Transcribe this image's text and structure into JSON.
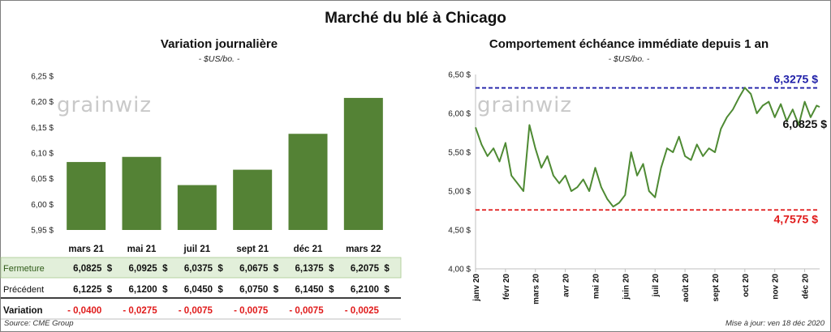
{
  "title": "Marché du blé à Chicago",
  "watermark": "grainwiz",
  "source": "Source: CME Group",
  "updated": "Mise à jour: ven 18 déc 2020",
  "colors": {
    "bar": "#548235",
    "line": "#4e8a33",
    "high": "#1f1fa8",
    "low": "#e01b1b",
    "table_bg": "#e2efda",
    "neg": "#e01b1b"
  },
  "chart_data": [
    {
      "type": "bar",
      "title": "Variation journalière",
      "subtitle": "- $US/bo. -",
      "categories": [
        "mars 21",
        "mai 21",
        "juil 21",
        "sept 21",
        "déc 21",
        "mars 22"
      ],
      "values": [
        6.0825,
        6.0925,
        6.0375,
        6.0675,
        6.1375,
        6.2075
      ],
      "ylim": [
        5.95,
        6.25
      ],
      "yticks": [
        "6,25 $",
        "6,20 $",
        "6,15 $",
        "6,10 $",
        "6,05 $",
        "6,00 $",
        "5,95 $"
      ],
      "yticks_values": [
        6.25,
        6.2,
        6.15,
        6.1,
        6.05,
        6.0,
        5.95
      ],
      "table": {
        "rows": [
          {
            "label": "Fermeture",
            "values": [
              "6,0825  $",
              "6,0925  $",
              "6,0375  $",
              "6,0675  $",
              "6,1375  $",
              "6,2075  $"
            ]
          },
          {
            "label": "Précédent",
            "values": [
              "6,1225  $",
              "6,1200  $",
              "6,0450  $",
              "6,0750  $",
              "6,1450  $",
              "6,2100  $"
            ]
          },
          {
            "label": "Variation",
            "values": [
              "- 0,0400",
              "- 0,0275",
              "- 0,0075",
              "- 0,0075",
              "- 0,0075",
              "- 0,0025"
            ]
          }
        ]
      }
    },
    {
      "type": "line",
      "title": "Comportement  échéance immédiate depuis 1 an",
      "subtitle": "- $US/bo. -",
      "ylim": [
        4.0,
        6.5
      ],
      "yticks": [
        "6,50 $",
        "6,00 $",
        "5,50 $",
        "5,00 $",
        "4,50 $",
        "4,00 $"
      ],
      "yticks_values": [
        6.5,
        6.0,
        5.5,
        5.0,
        4.5,
        4.0
      ],
      "xticks": [
        "janv 20",
        "févr 20",
        "mars 20",
        "avr 20",
        "mai 20",
        "juin 20",
        "juil 20",
        "août 20",
        "sept 20",
        "oct 20",
        "nov 20",
        "déc 20"
      ],
      "high": {
        "value": 6.3275,
        "label": "6,3275 $"
      },
      "low": {
        "value": 4.7575,
        "label": "4,7575 $"
      },
      "last": {
        "value": 6.0825,
        "label": "6,0825 $"
      },
      "x": [
        0,
        0.2,
        0.4,
        0.6,
        0.8,
        1.0,
        1.2,
        1.4,
        1.6,
        1.8,
        2.0,
        2.2,
        2.4,
        2.6,
        2.8,
        3.0,
        3.2,
        3.4,
        3.6,
        3.8,
        4.0,
        4.2,
        4.4,
        4.6,
        4.8,
        5.0,
        5.2,
        5.4,
        5.6,
        5.8,
        6.0,
        6.2,
        6.4,
        6.6,
        6.8,
        7.0,
        7.2,
        7.4,
        7.6,
        7.8,
        8.0,
        8.2,
        8.4,
        8.6,
        8.8,
        9.0,
        9.2,
        9.4,
        9.6,
        9.8,
        10.0,
        10.2,
        10.4,
        10.6,
        10.8,
        11.0,
        11.2,
        11.4,
        11.5
      ],
      "values": [
        5.82,
        5.6,
        5.45,
        5.55,
        5.38,
        5.62,
        5.2,
        5.1,
        5.0,
        5.85,
        5.55,
        5.3,
        5.45,
        5.2,
        5.1,
        5.2,
        5.0,
        5.05,
        5.15,
        5.0,
        5.3,
        5.05,
        4.9,
        4.8,
        4.85,
        4.95,
        5.5,
        5.2,
        5.35,
        5.0,
        4.92,
        5.3,
        5.55,
        5.5,
        5.7,
        5.45,
        5.4,
        5.6,
        5.45,
        5.55,
        5.5,
        5.8,
        5.95,
        6.05,
        6.2,
        6.33,
        6.25,
        6.0,
        6.1,
        6.15,
        5.95,
        6.12,
        5.9,
        6.05,
        5.85,
        6.15,
        5.95,
        6.1,
        6.0825
      ]
    }
  ]
}
